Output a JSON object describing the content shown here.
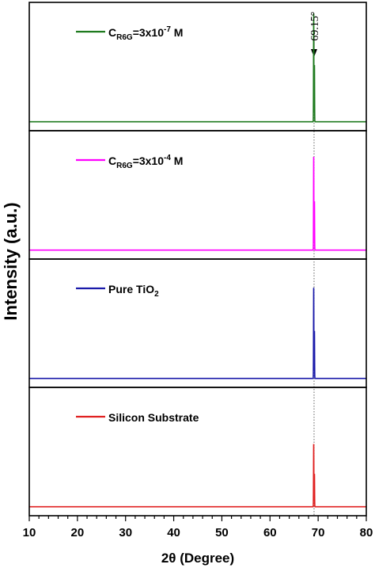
{
  "chart_data": {
    "type": "line",
    "layout": "stacked-panels",
    "xlabel": "2θ (Degree)",
    "ylabel": "Intensity (a.u.)",
    "xlim": [
      10,
      80
    ],
    "x_ticks": [
      10,
      20,
      30,
      40,
      50,
      60,
      70,
      80
    ],
    "x_minor_step": 2,
    "reference_line": {
      "x": 69.15,
      "label": "69.15°",
      "style": "dotted"
    },
    "peak": {
      "center": 69.15,
      "split": 0.15
    },
    "panels": [
      {
        "legend": {
          "main": "C",
          "sub": "R6G",
          "mid": "=3x10",
          "sup": "-7",
          "post": " M"
        },
        "color": "#1e7a1e",
        "baseline": 0.07,
        "peak_height": 0.92,
        "ylim": [
          0,
          1
        ]
      },
      {
        "legend": {
          "main": "C",
          "sub": "R6G",
          "mid": "=3x10",
          "sup": "-4",
          "post": " M"
        },
        "color": "#ff00ff",
        "baseline": 0.07,
        "peak_height": 0.8,
        "ylim": [
          0,
          1
        ]
      },
      {
        "legend": {
          "main": "Pure TiO",
          "sub": "2",
          "mid": "",
          "sup": "",
          "post": ""
        },
        "color": "#1a1aaa",
        "baseline": 0.07,
        "peak_height": 0.78,
        "ylim": [
          0,
          1
        ]
      },
      {
        "legend": {
          "main": "Silicon Substrate",
          "sub": "",
          "mid": "",
          "sup": "",
          "post": ""
        },
        "color": "#e02020",
        "baseline": 0.07,
        "peak_height": 0.56,
        "ylim": [
          0,
          1
        ]
      }
    ]
  }
}
